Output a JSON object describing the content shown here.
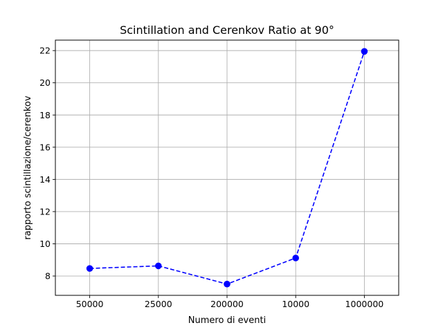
{
  "chart_data": {
    "type": "line",
    "title": "Scintillation and Cerenkov Ratio at 90°",
    "xlabel": "Numero di eventi",
    "ylabel": "rapporto scintillazione/cerenkov",
    "categories": [
      "50000",
      "25000",
      "200000",
      "10000",
      "1000000"
    ],
    "series": [
      {
        "values": [
          8.47,
          8.63,
          7.5,
          9.12,
          21.95
        ],
        "color": "#0000ff",
        "line_style": "dashed",
        "marker": "circle"
      }
    ],
    "ylim": [
      6.8,
      22.65
    ],
    "yticks": [
      8,
      10,
      12,
      14,
      16,
      18,
      20,
      22
    ],
    "grid": true,
    "legend": "none"
  }
}
